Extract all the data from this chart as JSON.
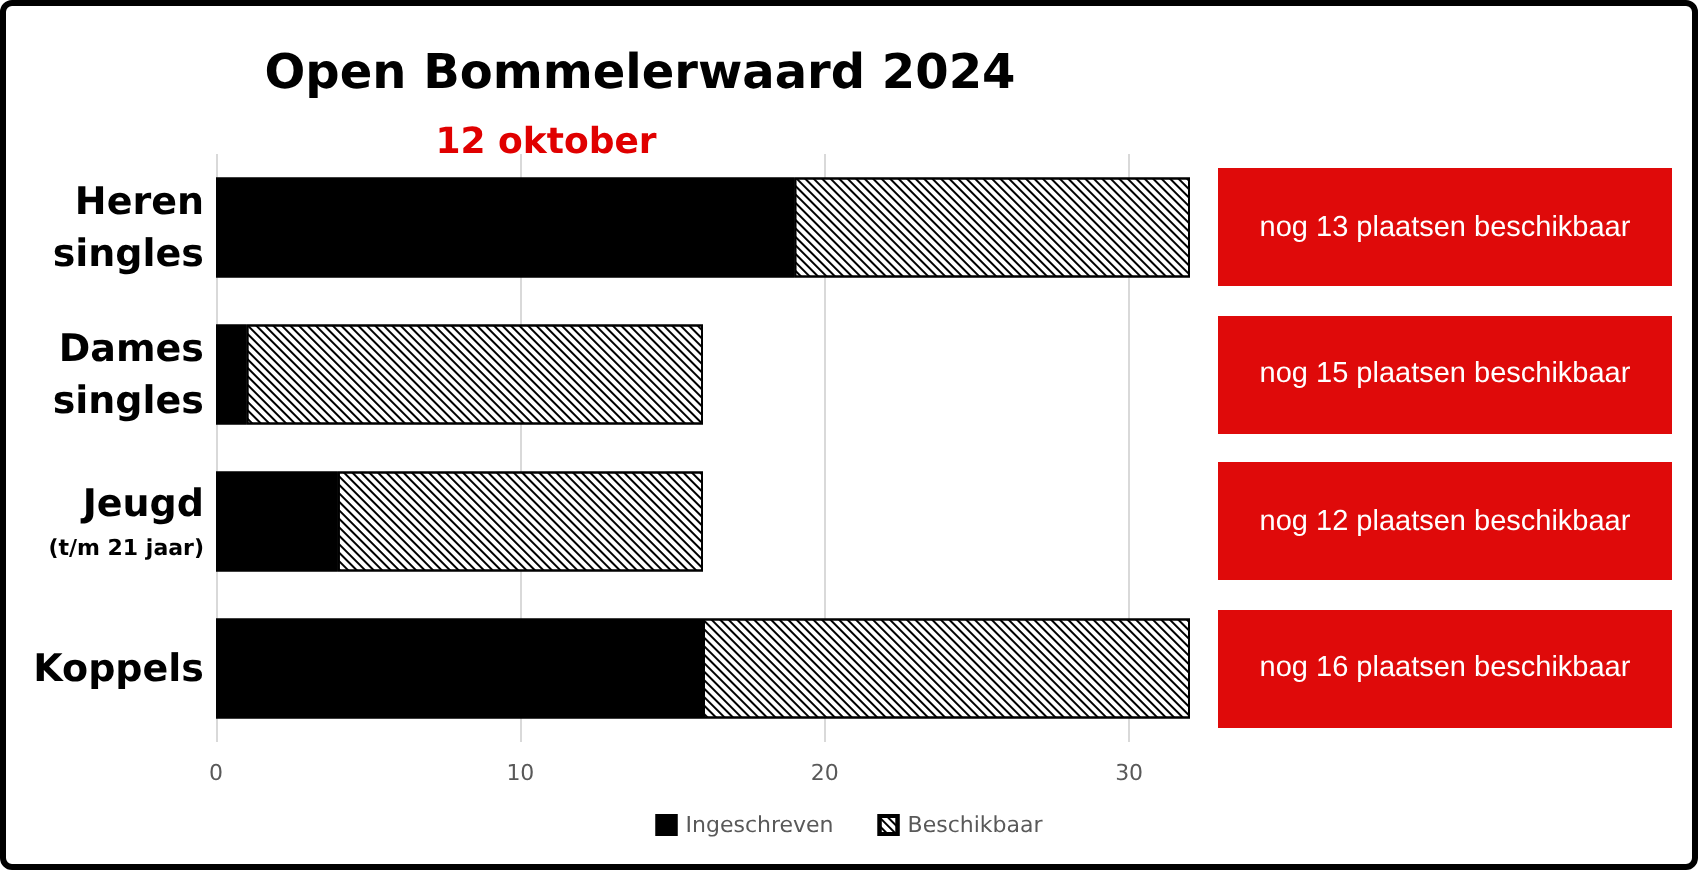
{
  "chart_data": {
    "type": "bar",
    "orientation": "horizontal",
    "stacked": true,
    "title": "Open Bommelerwaard 2024",
    "subtitle": "12 oktober",
    "categories": [
      "Heren singles",
      "Dames singles",
      "Jeugd (t/m 21 jaar)",
      "Koppels"
    ],
    "series": [
      {
        "name": "Ingeschreven",
        "color": "#000000",
        "values": [
          19,
          1,
          4,
          16
        ]
      },
      {
        "name": "Beschikbaar",
        "color": "#ffffff",
        "values": [
          13,
          15,
          12,
          16
        ]
      }
    ],
    "xlim": [
      0,
      32
    ],
    "xticks": [
      0,
      10,
      20,
      30
    ],
    "grid": "x",
    "legend": "bottom",
    "annotations": [
      "nog 13 plaatsen beschikbaar",
      "nog 15 plaatsen beschikbaar",
      "nog 12 plaatsen beschikbaar",
      "nog 16 plaatsen beschikbaar"
    ]
  }
}
